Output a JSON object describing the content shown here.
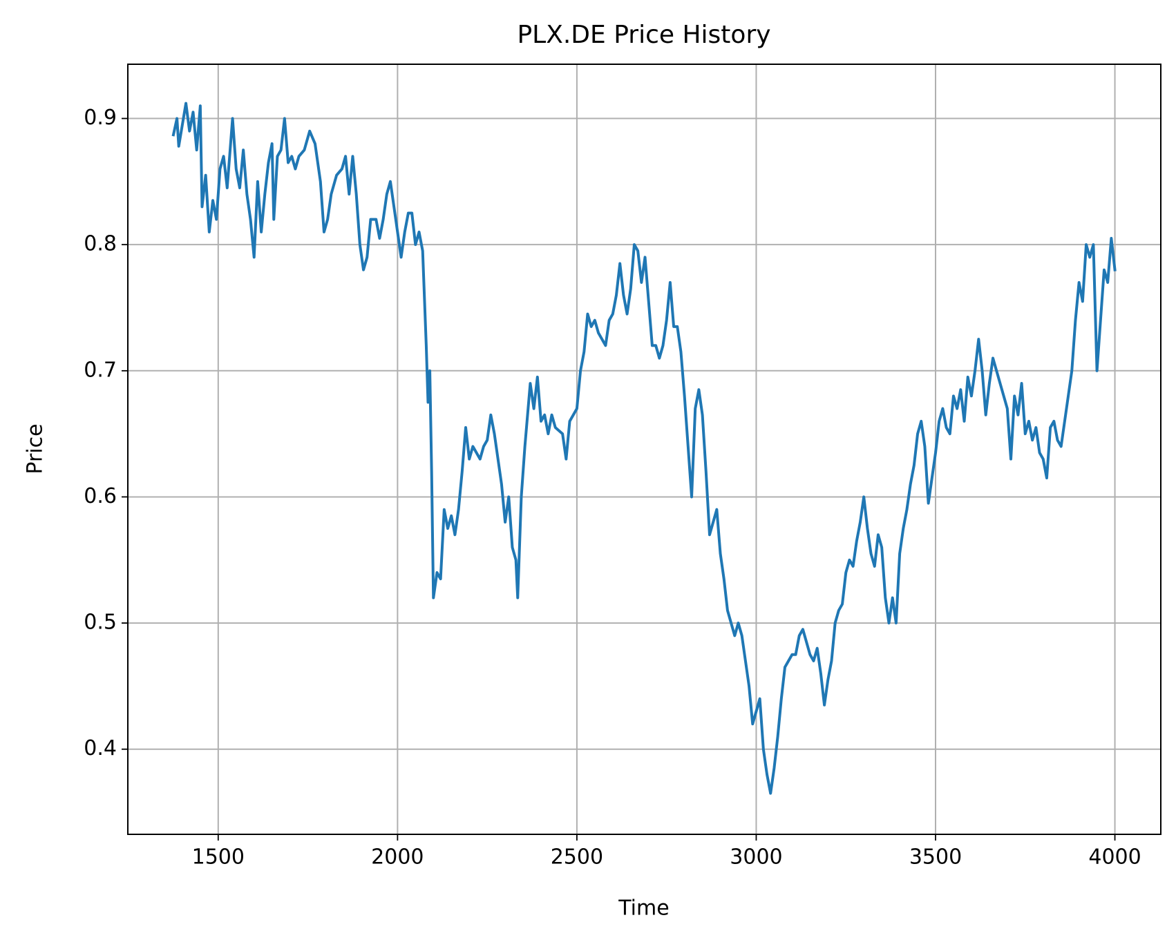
{
  "chart_data": {
    "type": "line",
    "title": "PLX.DE Price History",
    "xlabel": "Time",
    "ylabel": "Price",
    "x": [
      1375,
      1385,
      1390,
      1400,
      1410,
      1420,
      1430,
      1440,
      1450,
      1455,
      1465,
      1475,
      1485,
      1495,
      1505,
      1515,
      1525,
      1540,
      1550,
      1560,
      1570,
      1580,
      1590,
      1600,
      1610,
      1620,
      1630,
      1640,
      1650,
      1655,
      1665,
      1675,
      1685,
      1695,
      1705,
      1715,
      1725,
      1740,
      1755,
      1770,
      1785,
      1795,
      1805,
      1815,
      1830,
      1845,
      1855,
      1865,
      1875,
      1885,
      1895,
      1905,
      1915,
      1925,
      1940,
      1950,
      1960,
      1970,
      1980,
      1990,
      2000,
      2010,
      2020,
      2030,
      2040,
      2050,
      2060,
      2070,
      2080,
      2085,
      2090,
      2095,
      2100,
      2110,
      2120,
      2130,
      2140,
      2150,
      2160,
      2170,
      2180,
      2190,
      2200,
      2210,
      2220,
      2230,
      2240,
      2250,
      2260,
      2270,
      2280,
      2290,
      2300,
      2310,
      2320,
      2330,
      2335,
      2345,
      2355,
      2370,
      2380,
      2390,
      2400,
      2410,
      2420,
      2430,
      2440,
      2460,
      2470,
      2480,
      2490,
      2500,
      2510,
      2520,
      2530,
      2540,
      2550,
      2560,
      2570,
      2580,
      2590,
      2600,
      2610,
      2620,
      2630,
      2640,
      2650,
      2660,
      2670,
      2680,
      2690,
      2700,
      2710,
      2720,
      2730,
      2740,
      2750,
      2760,
      2770,
      2780,
      2790,
      2800,
      2810,
      2820,
      2830,
      2840,
      2850,
      2860,
      2870,
      2880,
      2890,
      2900,
      2910,
      2920,
      2930,
      2940,
      2950,
      2960,
      2970,
      2980,
      2990,
      3000,
      3010,
      3020,
      3030,
      3040,
      3050,
      3060,
      3070,
      3080,
      3090,
      3100,
      3110,
      3120,
      3130,
      3140,
      3150,
      3160,
      3170,
      3180,
      3190,
      3200,
      3210,
      3220,
      3230,
      3240,
      3250,
      3260,
      3270,
      3280,
      3290,
      3300,
      3310,
      3320,
      3330,
      3340,
      3350,
      3360,
      3370,
      3380,
      3390,
      3400,
      3410,
      3420,
      3430,
      3440,
      3450,
      3460,
      3470,
      3480,
      3490,
      3500,
      3510,
      3520,
      3530,
      3540,
      3550,
      3560,
      3570,
      3580,
      3590,
      3600,
      3610,
      3620,
      3630,
      3640,
      3650,
      3660,
      3670,
      3690,
      3700,
      3710,
      3720,
      3730,
      3740,
      3750,
      3760,
      3770,
      3780,
      3790,
      3800,
      3810,
      3820,
      3830,
      3840,
      3850,
      3860,
      3870,
      3880,
      3890,
      3900,
      3910,
      3920,
      3930,
      3940,
      3950,
      3960,
      3970,
      3980,
      3990,
      4000
    ],
    "series": [
      {
        "name": "PLX.DE",
        "color": "#1f77b4",
        "values": [
          0.887,
          0.9,
          0.878,
          0.895,
          0.912,
          0.89,
          0.905,
          0.875,
          0.91,
          0.83,
          0.855,
          0.81,
          0.835,
          0.82,
          0.86,
          0.87,
          0.845,
          0.9,
          0.86,
          0.845,
          0.875,
          0.84,
          0.82,
          0.79,
          0.85,
          0.81,
          0.84,
          0.865,
          0.88,
          0.82,
          0.87,
          0.875,
          0.9,
          0.865,
          0.87,
          0.86,
          0.87,
          0.875,
          0.89,
          0.88,
          0.85,
          0.81,
          0.82,
          0.84,
          0.855,
          0.86,
          0.87,
          0.84,
          0.87,
          0.84,
          0.8,
          0.78,
          0.79,
          0.82,
          0.82,
          0.805,
          0.82,
          0.84,
          0.85,
          0.83,
          0.81,
          0.79,
          0.81,
          0.825,
          0.825,
          0.8,
          0.81,
          0.795,
          0.72,
          0.675,
          0.7,
          0.62,
          0.52,
          0.54,
          0.535,
          0.59,
          0.575,
          0.585,
          0.57,
          0.59,
          0.62,
          0.655,
          0.63,
          0.64,
          0.635,
          0.63,
          0.64,
          0.645,
          0.665,
          0.65,
          0.63,
          0.61,
          0.58,
          0.6,
          0.56,
          0.55,
          0.52,
          0.6,
          0.64,
          0.69,
          0.67,
          0.695,
          0.66,
          0.665,
          0.65,
          0.665,
          0.655,
          0.65,
          0.63,
          0.66,
          0.665,
          0.67,
          0.7,
          0.715,
          0.745,
          0.735,
          0.74,
          0.73,
          0.725,
          0.72,
          0.74,
          0.745,
          0.76,
          0.785,
          0.76,
          0.745,
          0.765,
          0.8,
          0.795,
          0.77,
          0.79,
          0.755,
          0.72,
          0.72,
          0.71,
          0.72,
          0.74,
          0.77,
          0.735,
          0.735,
          0.715,
          0.68,
          0.64,
          0.6,
          0.67,
          0.685,
          0.665,
          0.62,
          0.57,
          0.58,
          0.59,
          0.555,
          0.535,
          0.51,
          0.5,
          0.49,
          0.5,
          0.49,
          0.47,
          0.45,
          0.42,
          0.43,
          0.44,
          0.4,
          0.38,
          0.365,
          0.385,
          0.41,
          0.44,
          0.465,
          0.47,
          0.475,
          0.475,
          0.49,
          0.495,
          0.485,
          0.475,
          0.47,
          0.48,
          0.46,
          0.435,
          0.455,
          0.47,
          0.5,
          0.51,
          0.515,
          0.54,
          0.55,
          0.545,
          0.565,
          0.58,
          0.6,
          0.575,
          0.555,
          0.545,
          0.57,
          0.56,
          0.52,
          0.5,
          0.52,
          0.5,
          0.555,
          0.575,
          0.59,
          0.61,
          0.625,
          0.65,
          0.66,
          0.64,
          0.595,
          0.615,
          0.635,
          0.66,
          0.67,
          0.655,
          0.65,
          0.68,
          0.67,
          0.685,
          0.66,
          0.695,
          0.68,
          0.7,
          0.725,
          0.7,
          0.665,
          0.69,
          0.71,
          0.7,
          0.68,
          0.67,
          0.63,
          0.68,
          0.665,
          0.69,
          0.65,
          0.66,
          0.645,
          0.655,
          0.635,
          0.63,
          0.615,
          0.655,
          0.66,
          0.645,
          0.64,
          0.66,
          0.68,
          0.7,
          0.74,
          0.77,
          0.755,
          0.8,
          0.79,
          0.8,
          0.7,
          0.74,
          0.78,
          0.77,
          0.805,
          0.78
        ]
      }
    ],
    "xlim": [
      1248,
      4128
    ],
    "ylim": [
      0.3325,
      0.943
    ],
    "xticks": [
      1500,
      2000,
      2500,
      3000,
      3500,
      4000
    ],
    "yticks": [
      0.4,
      0.5,
      0.6,
      0.7,
      0.8,
      0.9
    ],
    "grid": true
  }
}
